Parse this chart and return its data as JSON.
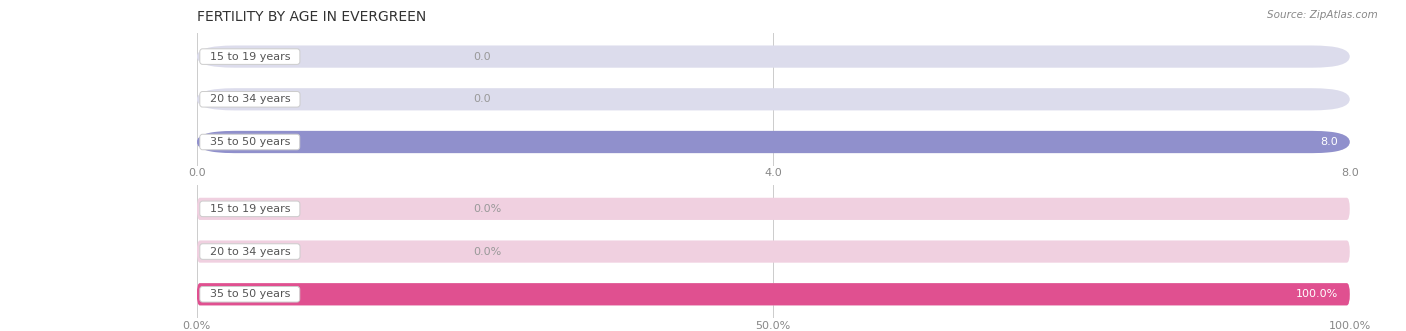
{
  "title": "FERTILITY BY AGE IN EVERGREEN",
  "source": "Source: ZipAtlas.com",
  "top_chart": {
    "categories": [
      "15 to 19 years",
      "20 to 34 years",
      "35 to 50 years"
    ],
    "values": [
      0.0,
      0.0,
      8.0
    ],
    "xlim": [
      0,
      8.0
    ],
    "xticks": [
      0.0,
      4.0,
      8.0
    ],
    "xtick_labels": [
      "0.0",
      "4.0",
      "8.0"
    ],
    "bar_color": "#9090cc",
    "bar_bg_color": "#dcdcec",
    "value_labels": [
      "0.0",
      "0.0",
      "8.0"
    ],
    "label_color_inside": "#ffffff",
    "label_color_outside": "#999999"
  },
  "bottom_chart": {
    "categories": [
      "15 to 19 years",
      "20 to 34 years",
      "35 to 50 years"
    ],
    "values": [
      0.0,
      0.0,
      100.0
    ],
    "xlim": [
      0,
      100.0
    ],
    "xticks": [
      0.0,
      50.0,
      100.0
    ],
    "xtick_labels": [
      "0.0%",
      "50.0%",
      "100.0%"
    ],
    "bar_color": "#e05090",
    "bar_bg_color": "#f0d0e0",
    "value_labels": [
      "0.0%",
      "0.0%",
      "100.0%"
    ],
    "label_color_inside": "#ffffff",
    "label_color_outside": "#999999"
  },
  "label_text_color": "#555555",
  "background_color": "#ffffff",
  "fig_width": 14.06,
  "fig_height": 3.31,
  "title_fontsize": 10,
  "tick_fontsize": 8,
  "bar_label_fontsize": 8,
  "category_fontsize": 8,
  "dpi": 100
}
